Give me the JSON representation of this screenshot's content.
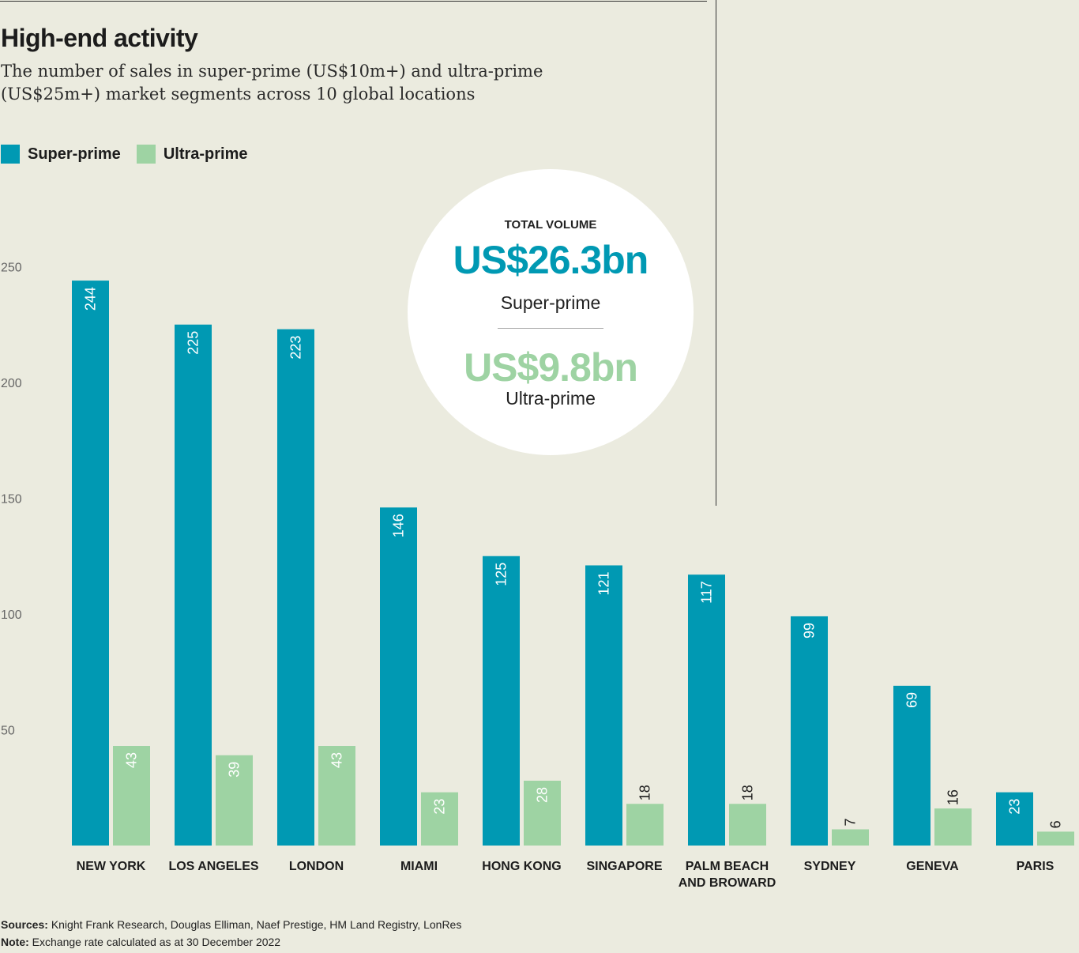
{
  "header": {
    "title": "High-end activity",
    "subtitle": "The number of sales in super-prime (US$10m+) and ultra-prime (US$25m+) market segments across 10 global locations"
  },
  "legend": {
    "super_label": "Super-prime",
    "ultra_label": "Ultra-prime"
  },
  "colors": {
    "super": "#0099b3",
    "ultra": "#9ed3a3",
    "background": "#ebebdf"
  },
  "callout": {
    "heading": "TOTAL VOLUME",
    "super_value": "US$26.3bn",
    "super_label": "Super-prime",
    "ultra_value": "US$9.8bn",
    "ultra_label": "Ultra-prime"
  },
  "footer": {
    "sources_label": "Sources:",
    "sources_text": "Knight Frank Research, Douglas Elliman, Naef Prestige, HM Land Registry, LonRes",
    "note_label": "Note:",
    "note_text": "Exchange rate calculated as at 30 December 2022"
  },
  "chart_data": {
    "type": "bar",
    "categories": [
      [
        "NEW YORK"
      ],
      [
        "LOS ANGELES"
      ],
      [
        "LONDON"
      ],
      [
        "MIAMI"
      ],
      [
        "HONG KONG"
      ],
      [
        "SINGAPORE"
      ],
      [
        "PALM BEACH",
        "AND BROWARD"
      ],
      [
        "SYDNEY"
      ],
      [
        "GENEVA"
      ],
      [
        "PARIS"
      ]
    ],
    "series": [
      {
        "name": "Super-prime",
        "values": [
          244,
          225,
          223,
          146,
          125,
          121,
          117,
          99,
          69,
          23
        ]
      },
      {
        "name": "Ultra-prime",
        "values": [
          43,
          39,
          43,
          23,
          28,
          18,
          18,
          7,
          16,
          6
        ]
      }
    ],
    "yticks": [
      50,
      100,
      150,
      200,
      250
    ],
    "ylim": [
      0,
      250
    ],
    "grid": false,
    "legend_position": "top-left"
  }
}
